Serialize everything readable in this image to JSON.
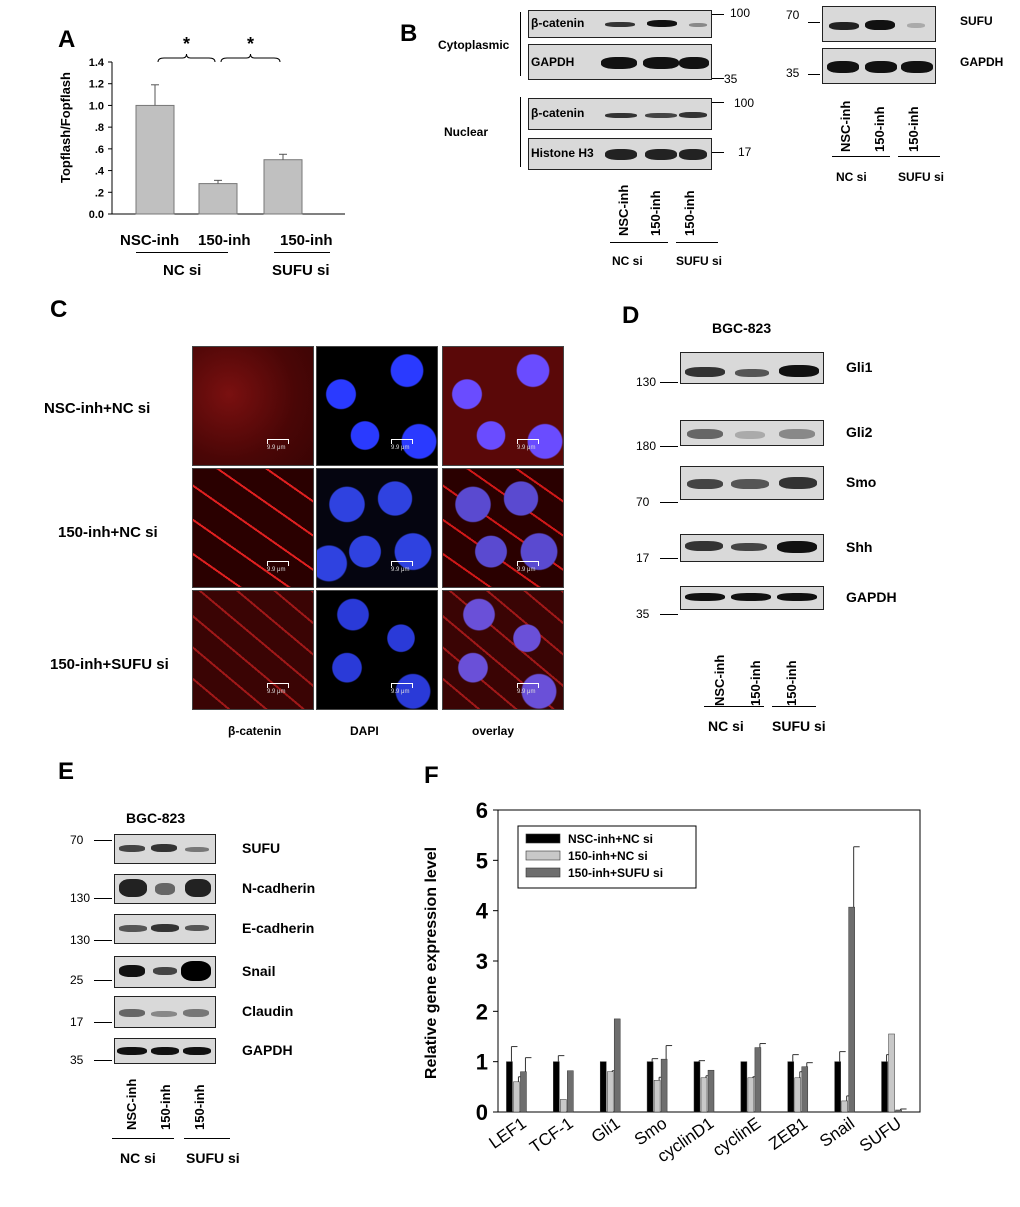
{
  "panels": {
    "A": {
      "letter": "A",
      "chart_data": {
        "type": "bar",
        "categories": [
          "NSC-inh",
          "150-inh",
          "150-inh"
        ],
        "values": [
          1.0,
          0.28,
          0.5
        ],
        "errors": [
          0.19,
          0.03,
          0.05
        ],
        "ylabel": "Topflash/Fopflash",
        "ylim": [
          0,
          1.4
        ],
        "yticks": [
          "0.0",
          ".2",
          ".4",
          ".6",
          ".8",
          "1.0",
          "1.2",
          "1.4"
        ],
        "groups": [
          "NC si",
          "SUFU si"
        ],
        "significance": [
          "*",
          "*"
        ],
        "bar_color": "#c0c0c0"
      }
    },
    "B": {
      "letter": "B",
      "cytoplasmic": "Cytoplasmic",
      "nuclear": "Nuclear",
      "bands_left": [
        "β-catenin",
        "GAPDH",
        "β-catenin",
        "Histone H3"
      ],
      "markers_left": [
        "100",
        "35",
        "100",
        "17"
      ],
      "bands_right": [
        "SUFU",
        "GAPDH"
      ],
      "markers_right": [
        "70",
        "35"
      ],
      "lanes": [
        "NSC-inh",
        "150-inh",
        "150-inh"
      ],
      "groups": [
        "NC si",
        "SUFU si"
      ]
    },
    "C": {
      "letter": "C",
      "rows": [
        "NSC-inh+NC si",
        "150-inh+NC si",
        "150-inh+SUFU si"
      ],
      "cols": [
        "β-catenin",
        "DAPI",
        "overlay"
      ],
      "scale": "9.9 μm"
    },
    "D": {
      "letter": "D",
      "cell_line": "BGC-823",
      "bands": [
        "Gli1",
        "Gli2",
        "Smo",
        "Shh",
        "GAPDH"
      ],
      "markers": [
        "130",
        "180",
        "70",
        "17",
        "35"
      ],
      "lanes": [
        "NSC-inh",
        "150-inh",
        "150-inh"
      ],
      "groups": [
        "NC si",
        "SUFU si"
      ]
    },
    "E": {
      "letter": "E",
      "cell_line": "BGC-823",
      "bands": [
        "SUFU",
        "N-cadherin",
        "E-cadherin",
        "Snail",
        "Claudin",
        "GAPDH"
      ],
      "markers": [
        "70",
        "130",
        "130",
        "25",
        "17",
        "35"
      ],
      "lanes": [
        "NSC-inh",
        "150-inh",
        "150-inh"
      ],
      "groups": [
        "NC si",
        "SUFU si"
      ]
    },
    "F": {
      "letter": "F",
      "chart_data": {
        "type": "bar",
        "categories": [
          "LEF1",
          "TCF-1",
          "Gli1",
          "Smo",
          "cyclinD1",
          "cyclinE",
          "ZEB1",
          "Snail",
          "SUFU"
        ],
        "series": [
          {
            "name": "NSC-inh+NC si",
            "color": "#000000",
            "values": [
              1.0,
              1.0,
              1.0,
              1.0,
              1.0,
              1.0,
              1.0,
              1.0,
              1.0
            ],
            "errors": [
              0.3,
              0.12,
              0.0,
              0.06,
              0.02,
              0.0,
              0.14,
              0.2,
              0.14
            ]
          },
          {
            "name": "150-inh+NC si",
            "color": "#c8c8c8",
            "values": [
              0.6,
              0.25,
              0.8,
              0.63,
              0.68,
              0.68,
              0.68,
              0.22,
              1.55
            ],
            "errors": [
              0.1,
              0.0,
              0.02,
              0.06,
              0.04,
              0.02,
              0.12,
              0.1,
              0.0
            ]
          },
          {
            "name": "150-inh+SUFU si",
            "color": "#6e6e6e",
            "values": [
              0.8,
              0.82,
              1.85,
              1.05,
              0.83,
              1.28,
              0.9,
              4.07,
              0.04
            ],
            "errors": [
              0.28,
              0.0,
              0.0,
              0.27,
              0.0,
              0.08,
              0.08,
              1.2,
              0.02
            ]
          }
        ],
        "ylabel": "Relative gene expression level",
        "ylim": [
          0,
          6
        ],
        "yticks": [
          "0",
          "1",
          "2",
          "3",
          "4",
          "5",
          "6"
        ],
        "legend": "top-left"
      }
    }
  }
}
